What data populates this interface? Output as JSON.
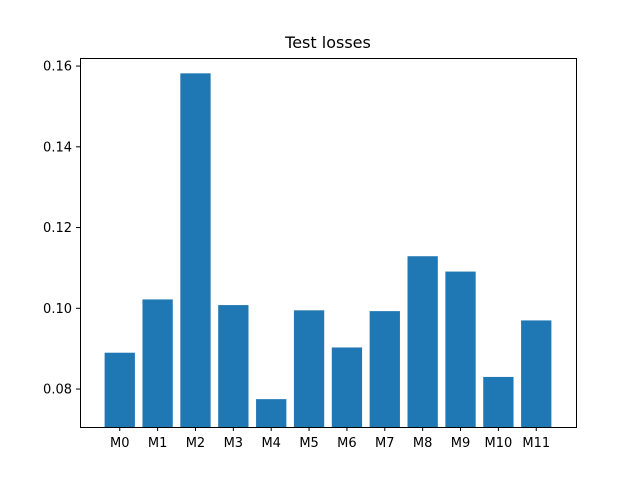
{
  "colors": {
    "bar": "#1f77b4",
    "axis": "#000000",
    "background": "#ffffff"
  },
  "chart_data": {
    "type": "bar",
    "title": "Test losses",
    "xlabel": "",
    "ylabel": "",
    "categories": [
      "M0",
      "M1",
      "M2",
      "M3",
      "M4",
      "M5",
      "M6",
      "M7",
      "M8",
      "M9",
      "M10",
      "M11"
    ],
    "values": [
      0.089,
      0.1022,
      0.1582,
      0.1008,
      0.0775,
      0.0995,
      0.0903,
      0.0993,
      0.1129,
      0.1091,
      0.083,
      0.097
    ],
    "ylim": [
      0.0706,
      0.162
    ],
    "yticks": [
      0.08,
      0.1,
      0.12,
      0.14,
      0.16
    ],
    "ytick_labels": [
      "0.08",
      "0.10",
      "0.12",
      "0.14",
      "0.16"
    ],
    "grid": false,
    "legend": "none"
  }
}
